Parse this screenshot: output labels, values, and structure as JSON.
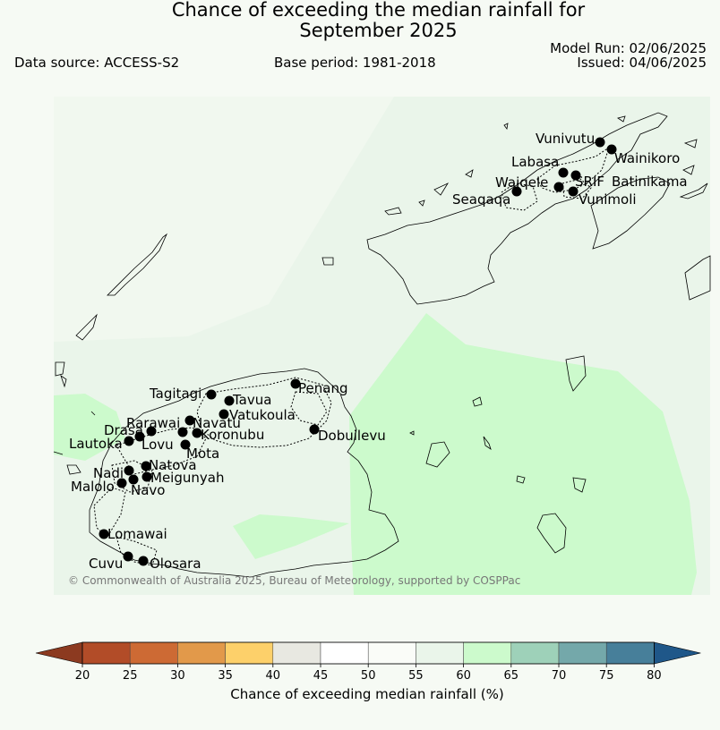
{
  "header": {
    "title_line1": "Chance of exceeding the median rainfall for",
    "title_line2": "September 2025",
    "data_source": "Data source: ACCESS-S2",
    "base_period": "Base period: 1981-2018",
    "model_run": "Model Run: 02/06/2025",
    "issued": "Issued: 04/06/2025"
  },
  "map": {
    "copyright": "© Commonwealth of Australia 2025, Bureau of Meteorology, supported by COSPPac",
    "stations": [
      {
        "name": "Vunivutu"
      },
      {
        "name": "Wainikoro"
      },
      {
        "name": "Labasa"
      },
      {
        "name": "Waiqele"
      },
      {
        "name": "SRIF"
      },
      {
        "name": "Batinikama"
      },
      {
        "name": "Seaqaqa"
      },
      {
        "name": "Vunimoli"
      },
      {
        "name": "Tagitagi"
      },
      {
        "name": "Tavua"
      },
      {
        "name": "Penang"
      },
      {
        "name": "Vatukoula"
      },
      {
        "name": "Rarawai"
      },
      {
        "name": "Navatu"
      },
      {
        "name": "Koronubu"
      },
      {
        "name": "Drasa"
      },
      {
        "name": "Lautoka"
      },
      {
        "name": "Lovu"
      },
      {
        "name": "Mota"
      },
      {
        "name": "Dobuilevu"
      },
      {
        "name": "Natova"
      },
      {
        "name": "Nadi"
      },
      {
        "name": "Meigunyah"
      },
      {
        "name": "Malolo"
      },
      {
        "name": "Navo"
      },
      {
        "name": "Lomawai"
      },
      {
        "name": "Cuvu"
      },
      {
        "name": "Olosara"
      }
    ]
  },
  "colorbar": {
    "label": "Chance of exceeding median rainfall (%)",
    "ticks": [
      "20",
      "25",
      "30",
      "35",
      "40",
      "45",
      "50",
      "55",
      "60",
      "65",
      "70",
      "75",
      "80"
    ],
    "colors": [
      "#b24c28",
      "#cd6a34",
      "#e2994a",
      "#fdd06a",
      "#e8e8e1",
      "#ffffff",
      "#fafcf8",
      "#eaf5ea",
      "#ccfacc",
      "#9ed1b9",
      "#74a8aa",
      "#477f9a"
    ],
    "under_color": "#8c3a20",
    "over_color": "#1f5789"
  },
  "colors": {
    "background": "#f6faf4",
    "map_base": "#eaf5ea",
    "wet_zone": "#ccfacc"
  }
}
